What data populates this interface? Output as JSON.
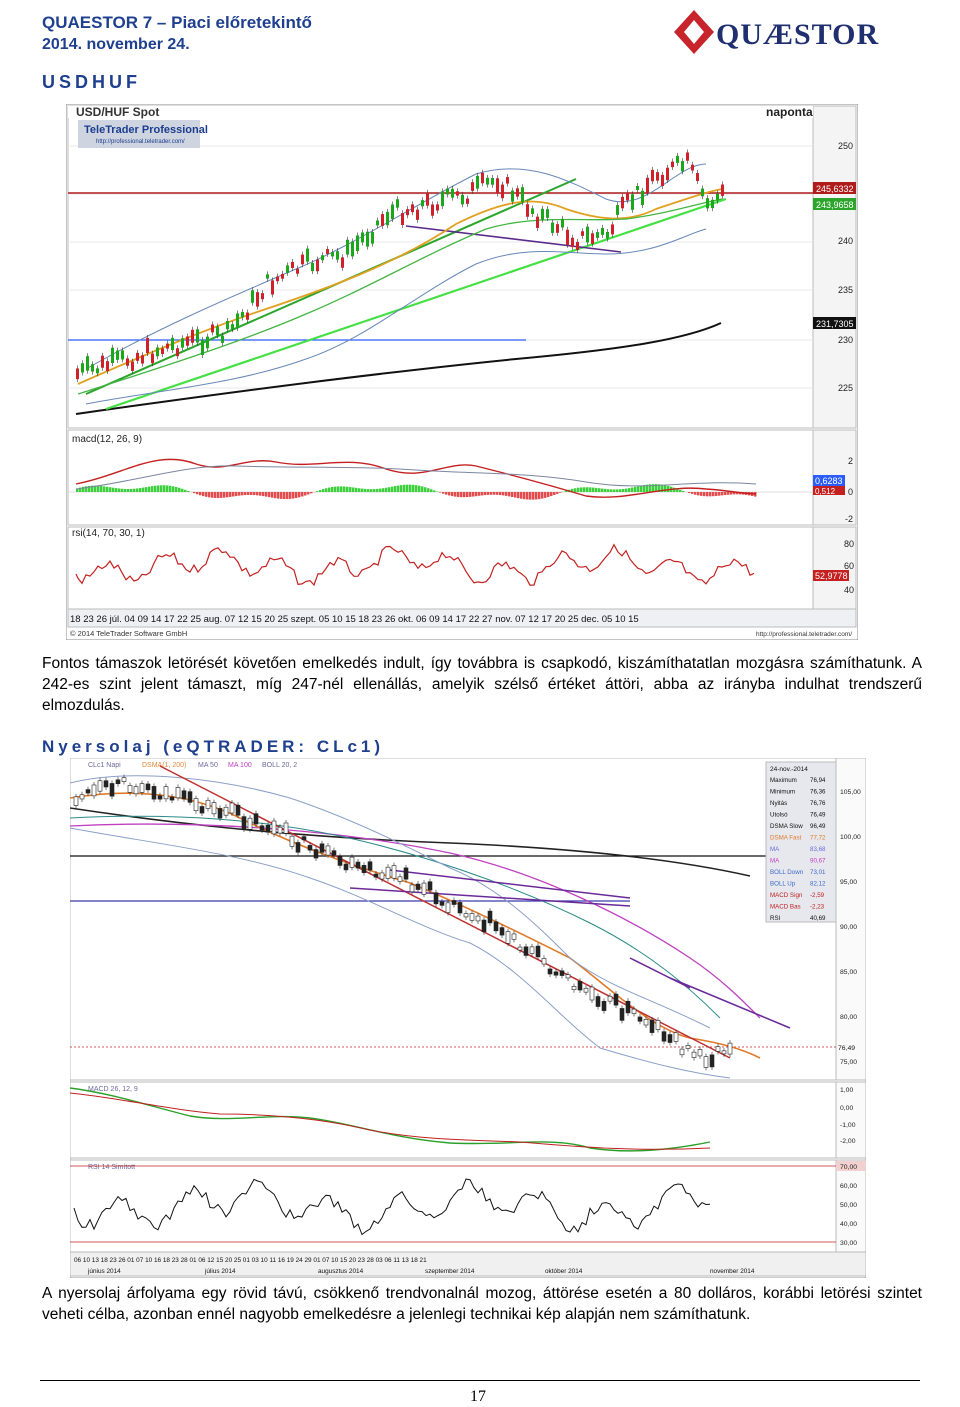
{
  "header": {
    "title": "QUAESTOR 7 – Piaci előretekintő",
    "date": "2014. november 24.",
    "logo_text": "QUÆSTOR"
  },
  "section1": {
    "heading": "USDHUF",
    "chart": {
      "title": "USD/HUF Spot",
      "brand": "TeleTrader Professional",
      "brand_url": "http://professional.teletrader.com/",
      "period": "naponta",
      "price_ticks": [
        "250",
        "245",
        "240",
        "235",
        "230",
        "225"
      ],
      "price_labels": [
        "245,6332",
        "243,9658",
        "231,7305"
      ],
      "macd_label": "macd(12, 26, 9)",
      "macd_ticks": [
        "2",
        "0",
        "-2"
      ],
      "macd_values": [
        "0,6283",
        "0,512"
      ],
      "rsi_label": "rsi(14, 70, 30, 1)",
      "rsi_ticks": [
        "80",
        "60",
        "40"
      ],
      "rsi_value": "52,9778",
      "copyright": "© 2014 TeleTrader Software GmbH",
      "footer_url": "http://professional.teletrader.com/",
      "date_axis": "18 23 26 júl. 04 09 14 17 22 25 aug. 07 12 15 20 25 szept. 05 10 15 18 23 26 okt. 06 09 14 17 22 27 nov. 07 12 17 20 25 dec. 05 10 15"
    }
  },
  "paragraph1": "Fontos támaszok letörését követően emelkedés indult, így továbbra is csapkodó, kiszámíthatatlan mozgásra számíthatunk. A 242-es szint jelent támaszt, míg 247-nél ellenállás, amelyik szélső értéket áttöri, abba az irányba indulhat trendszerű elmozdulás.",
  "section2": {
    "heading": "Nyersolaj (eQTRADER: CLc1)",
    "chart": {
      "legend": [
        "CLc1 Napi",
        "DSMA(1, 200)",
        "MA 50",
        "MA 100",
        "BOLL 20, 2"
      ],
      "info_date": "24-nov.-2014",
      "info_rows": [
        {
          "k": "Maximum",
          "v": "76,94"
        },
        {
          "k": "Minimum",
          "v": "76,36"
        },
        {
          "k": "Nyitás",
          "v": "76,76"
        },
        {
          "k": "Utolsó",
          "v": "76,49"
        },
        {
          "k": "DSMA Slow",
          "v": "96,49"
        },
        {
          "k": "DSMA Fast",
          "v": "77,72"
        },
        {
          "k": "MA",
          "v": "83,68"
        },
        {
          "k": "MA",
          "v": "90,67"
        },
        {
          "k": "BOLL Down",
          "v": "73,01"
        },
        {
          "k": "BOLL Up",
          "v": "82,12"
        },
        {
          "k": "MACD Sign",
          "v": "-2,59"
        },
        {
          "k": "MACD Bas",
          "v": "-2,23"
        },
        {
          "k": "RSI",
          "v": "40,69"
        }
      ],
      "price_ticks": [
        "105,00",
        "100,00",
        "95,00",
        "90,00",
        "85,00",
        "80,00",
        "75,00"
      ],
      "last_price": "76,49",
      "macd_label": "MACD 26, 12, 9",
      "macd_ticks": [
        "1,00",
        "0,00",
        "-1,00",
        "-2,00"
      ],
      "rsi_label": "RSI 14 Simított",
      "rsi_ticks": [
        "70,00",
        "60,00",
        "50,00",
        "40,00",
        "30,00"
      ],
      "day_axis": "06 10 13 18 23 26 01 07 10 16 18 23 28 01 06 12 15 20 25 01 03 10 11 16 19 24 29 01 07 10 15 20 23 28 03 06 11 13 18 21",
      "month_axis": [
        "június 2014",
        "július 2014",
        "augusztus 2014",
        "szeptember 2014",
        "október 2014",
        "november 2014"
      ]
    }
  },
  "paragraph2": "A nyersolaj árfolyama egy rövid távú, csökkenő trendvonalnál mozog, áttörése esetén a 80 dolláros, korábbi letörési szintet veheti célba, azonban ennél nagyobb emelkedésre a jelenlegi technikai kép alapján nem számíthatunk.",
  "page_number": "17",
  "colors": {
    "heading_blue": "#1f3f8f",
    "logo_red": "#c8242b",
    "candle_up": "#1aa81a",
    "candle_down": "#d0202a"
  }
}
